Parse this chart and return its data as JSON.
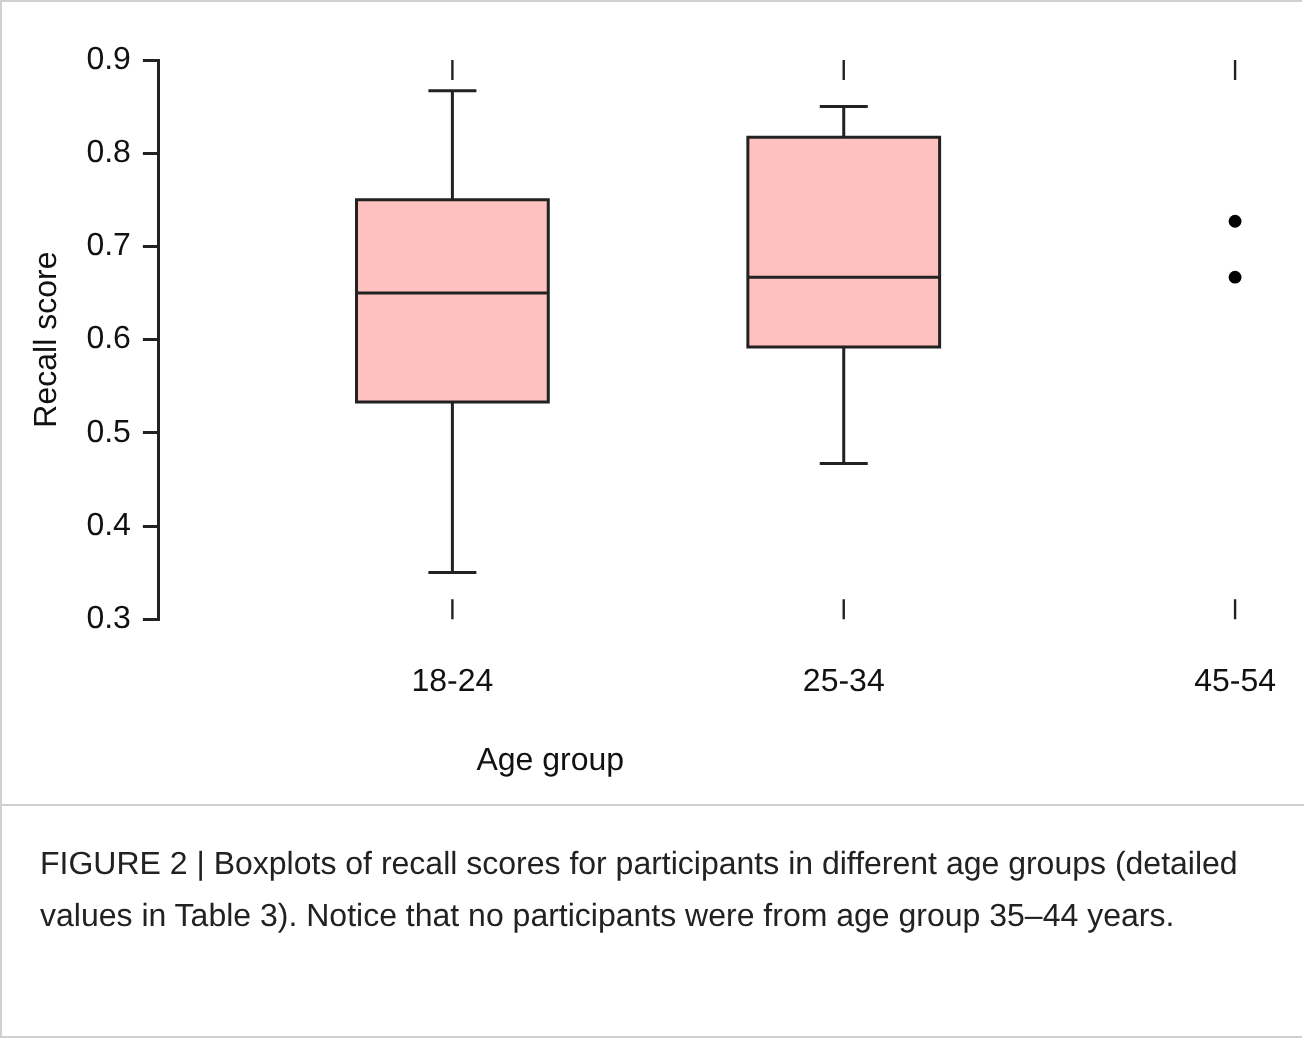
{
  "chart_data": {
    "type": "box",
    "categories": [
      "18-24",
      "25-34",
      "45-54"
    ],
    "series": [
      {
        "type": "box",
        "color": "#ffc0c0",
        "boxes": [
          {
            "low": 0.35,
            "q1": 0.533,
            "median": 0.65,
            "q3": 0.75,
            "high": 0.867
          },
          {
            "low": 0.467,
            "q1": 0.592,
            "median": 0.667,
            "q3": 0.817,
            "high": 0.85
          },
          null
        ]
      },
      {
        "type": "scatter",
        "color": "#000000",
        "x": [
          "45-54",
          "45-54"
        ],
        "values": [
          0.727,
          0.667
        ]
      }
    ],
    "marker": "circle",
    "xlabel": "Age group",
    "ylabel": "Recall score",
    "ylim": [
      0.3,
      0.9
    ],
    "yticks": [
      0.3,
      0.4,
      0.5,
      0.6,
      0.7,
      0.8,
      0.9
    ],
    "annotations": [
      "FIGURE 2 | Boxplots of recall scores for participants in different age groups (detailed values in Table 3). Notice that no participants were from age group 35–44 years."
    ]
  }
}
